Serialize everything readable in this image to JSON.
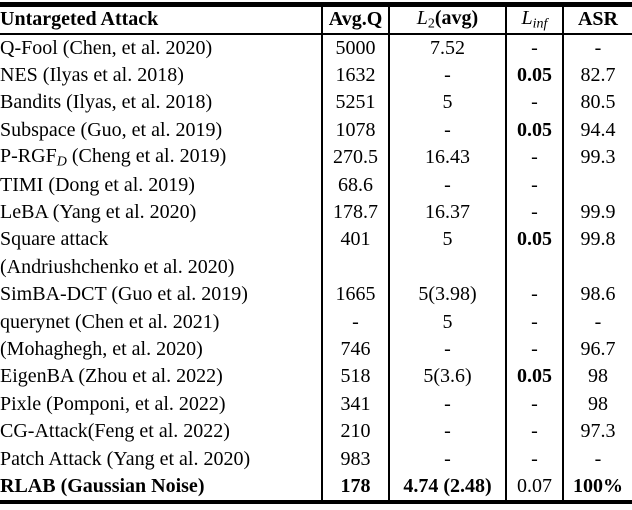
{
  "colors": {
    "text": "#000000",
    "background": "#ffffff",
    "rules": "#000000"
  },
  "table": {
    "title_column_header": "Untargeted Attack",
    "columns": [
      [
        {
          "t": "Untargeted Attack",
          "b": true
        }
      ],
      [
        {
          "t": "Avg.Q",
          "b": true
        }
      ],
      [
        {
          "t": "L",
          "i": true
        },
        {
          "t": "2",
          "sub": true
        },
        {
          "t": "(avg)",
          "b": true
        }
      ],
      [
        {
          "t": "L",
          "i": true
        },
        {
          "t": "inf",
          "i": true,
          "sub": true
        }
      ],
      [
        {
          "t": "ASR",
          "b": true
        }
      ]
    ],
    "rows": [
      [
        [
          {
            "t": "Q-Fool (Chen, et al. 2020)"
          }
        ],
        [
          {
            "t": "5000"
          }
        ],
        [
          {
            "t": "7.52"
          }
        ],
        [
          {
            "t": "-"
          }
        ],
        [
          {
            "t": "-"
          }
        ]
      ],
      [
        [
          {
            "t": "NES (Ilyas et al. 2018)"
          }
        ],
        [
          {
            "t": "1632"
          }
        ],
        [
          {
            "t": "-"
          }
        ],
        [
          {
            "t": "0.05",
            "b": true
          }
        ],
        [
          {
            "t": "82.7"
          }
        ]
      ],
      [
        [
          {
            "t": "Bandits (Ilyas, et al. 2018)"
          }
        ],
        [
          {
            "t": "5251"
          }
        ],
        [
          {
            "t": "5"
          }
        ],
        [
          {
            "t": "-"
          }
        ],
        [
          {
            "t": "80.5"
          }
        ]
      ],
      [
        [
          {
            "t": "Subspace (Guo, et al. 2019)"
          }
        ],
        [
          {
            "t": "1078"
          }
        ],
        [
          {
            "t": "-"
          }
        ],
        [
          {
            "t": "0.05",
            "b": true
          }
        ],
        [
          {
            "t": "94.4"
          }
        ]
      ],
      [
        [
          {
            "t": "P-RGF"
          },
          {
            "t": "D",
            "i": true,
            "sub": true
          },
          {
            "t": " (Cheng et al. 2019)"
          }
        ],
        [
          {
            "t": "270.5"
          }
        ],
        [
          {
            "t": "16.43"
          }
        ],
        [
          {
            "t": "-"
          }
        ],
        [
          {
            "t": "99.3"
          }
        ]
      ],
      [
        [
          {
            "t": "TIMI (Dong et al. 2019)"
          }
        ],
        [
          {
            "t": "68.6"
          }
        ],
        [
          {
            "t": "-"
          }
        ],
        [
          {
            "t": "-"
          }
        ],
        [
          {
            "t": ""
          }
        ]
      ],
      [
        [
          {
            "t": "LeBA (Yang et al. 2020)"
          }
        ],
        [
          {
            "t": "178.7"
          }
        ],
        [
          {
            "t": "16.37"
          }
        ],
        [
          {
            "t": "-"
          }
        ],
        [
          {
            "t": "99.9"
          }
        ]
      ],
      [
        [
          {
            "t": "Square attack"
          }
        ],
        [
          {
            "t": "401"
          }
        ],
        [
          {
            "t": "5"
          }
        ],
        [
          {
            "t": "0.05",
            "b": true
          }
        ],
        [
          {
            "t": "99.8"
          }
        ]
      ],
      [
        [
          {
            "t": "(Andriushchenko et al. 2020)"
          }
        ],
        [
          {
            "t": ""
          }
        ],
        [
          {
            "t": ""
          }
        ],
        [
          {
            "t": ""
          }
        ],
        [
          {
            "t": ""
          }
        ]
      ],
      [
        [
          {
            "t": "SimBA-DCT (Guo et al. 2019)"
          }
        ],
        [
          {
            "t": "1665"
          }
        ],
        [
          {
            "t": "5(3.98)"
          }
        ],
        [
          {
            "t": "-"
          }
        ],
        [
          {
            "t": "98.6"
          }
        ]
      ],
      [
        [
          {
            "t": "querynet (Chen et al. 2021)"
          }
        ],
        [
          {
            "t": "-"
          }
        ],
        [
          {
            "t": "5"
          }
        ],
        [
          {
            "t": "-"
          }
        ],
        [
          {
            "t": "-"
          }
        ]
      ],
      [
        [
          {
            "t": "(Mohaghegh, et al. 2020)"
          }
        ],
        [
          {
            "t": "746"
          }
        ],
        [
          {
            "t": "-"
          }
        ],
        [
          {
            "t": "-"
          }
        ],
        [
          {
            "t": "96.7"
          }
        ]
      ],
      [
        [
          {
            "t": "EigenBA (Zhou et al. 2022)"
          }
        ],
        [
          {
            "t": "518"
          }
        ],
        [
          {
            "t": "5(3.6)"
          }
        ],
        [
          {
            "t": "0.05",
            "b": true
          }
        ],
        [
          {
            "t": "98"
          }
        ]
      ],
      [
        [
          {
            "t": "Pixle (Pomponi, et al. 2022)"
          }
        ],
        [
          {
            "t": "341"
          }
        ],
        [
          {
            "t": "-"
          }
        ],
        [
          {
            "t": "-"
          }
        ],
        [
          {
            "t": "98"
          }
        ]
      ],
      [
        [
          {
            "t": "CG-Attack(Feng et al. 2022)"
          }
        ],
        [
          {
            "t": "210"
          }
        ],
        [
          {
            "t": "-"
          }
        ],
        [
          {
            "t": "-"
          }
        ],
        [
          {
            "t": "97.3"
          }
        ]
      ],
      [
        [
          {
            "t": "Patch Attack (Yang et al. 2020)"
          }
        ],
        [
          {
            "t": "983"
          }
        ],
        [
          {
            "t": "-"
          }
        ],
        [
          {
            "t": "-"
          }
        ],
        [
          {
            "t": "-"
          }
        ]
      ],
      [
        [
          {
            "t": "RLAB (Gaussian Noise)",
            "b": true
          }
        ],
        [
          {
            "t": "178",
            "b": true
          }
        ],
        [
          {
            "t": "4.74 (2.48)",
            "b": true
          }
        ],
        [
          {
            "t": "0.07"
          }
        ],
        [
          {
            "t": "100%",
            "b": true
          }
        ]
      ]
    ]
  }
}
